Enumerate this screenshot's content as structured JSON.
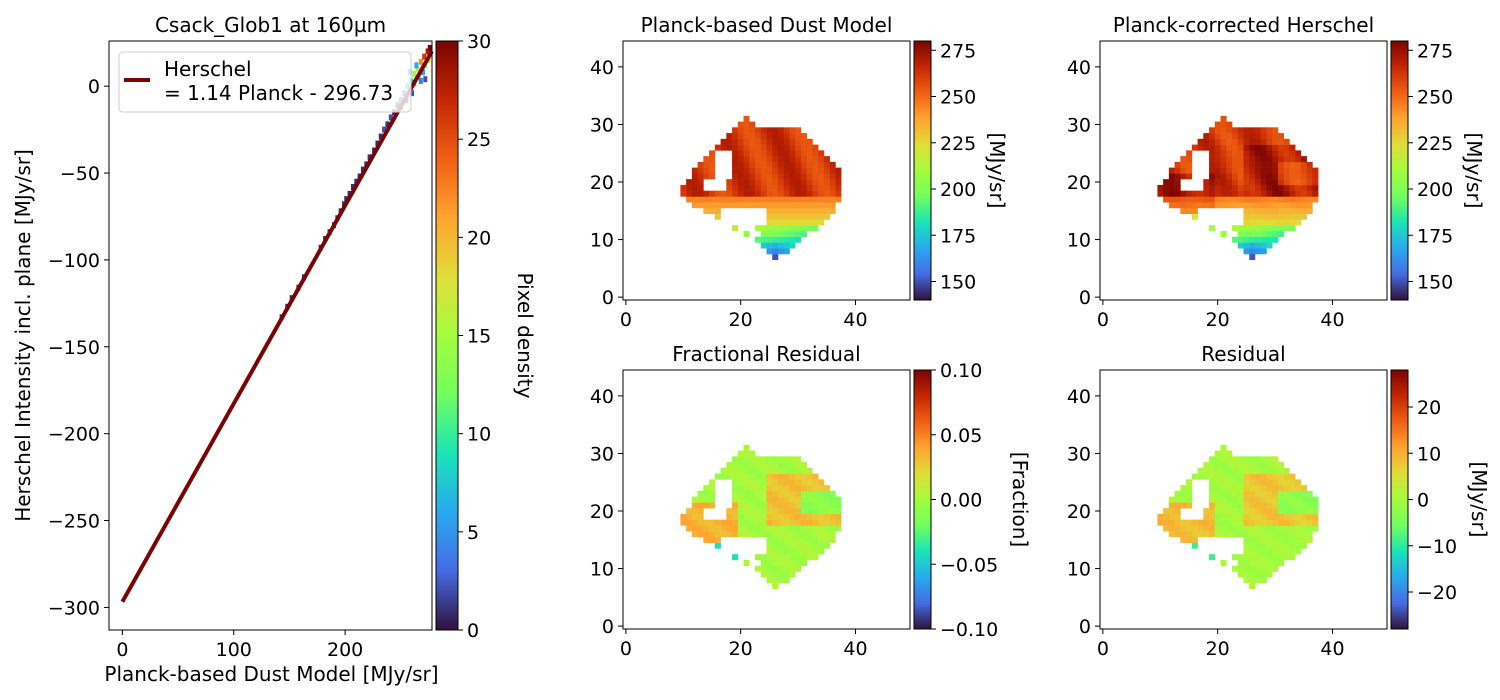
{
  "chart_data": [
    {
      "type": "scatter",
      "title": "Csack_Glob1 at 160µm",
      "xlabel": "Planck-based Dust Model [MJy/sr]",
      "ylabel": "Herschel Intensity incl. plane [MJy/sr]",
      "xlim": [
        -12,
        278
      ],
      "ylim": [
        -313,
        26
      ],
      "xticks": [
        0,
        100,
        200
      ],
      "yticks": [
        0,
        -50,
        -100,
        -150,
        -200,
        -250,
        -300
      ],
      "fit_line": {
        "slope": 1.14,
        "intercept": -296.73,
        "x_range": [
          0,
          278
        ],
        "color": "#7a0403"
      },
      "legend": {
        "position": "top-left",
        "entries": [
          "Herschel",
          "= 1.14 Planck - 296.73"
        ]
      },
      "density_points": [
        [
          143,
          -133,
          1
        ],
        [
          148,
          -127,
          1
        ],
        [
          152,
          -122,
          1
        ],
        [
          158,
          -116,
          1
        ],
        [
          163,
          -110,
          1
        ],
        [
          178,
          -93,
          1
        ],
        [
          182,
          -88,
          1
        ],
        [
          186,
          -84,
          1
        ],
        [
          190,
          -80,
          1
        ],
        [
          193,
          -76,
          1
        ],
        [
          196,
          -72,
          1
        ],
        [
          199,
          -68,
          1
        ],
        [
          201,
          -65,
          1
        ],
        [
          204,
          -62,
          1
        ],
        [
          207,
          -58,
          1
        ],
        [
          210,
          -55,
          1
        ],
        [
          213,
          -52,
          1
        ],
        [
          216,
          -48,
          1
        ],
        [
          219,
          -45,
          1
        ],
        [
          222,
          -41,
          1
        ],
        [
          226,
          -37,
          1
        ],
        [
          229,
          -33,
          1
        ],
        [
          232,
          -29,
          1
        ],
        [
          235,
          -25,
          2
        ],
        [
          238,
          -22,
          1
        ],
        [
          241,
          -18,
          2
        ],
        [
          244,
          -15,
          1
        ],
        [
          247,
          -11,
          2
        ],
        [
          250,
          -8,
          3
        ],
        [
          253,
          -4,
          4
        ],
        [
          256,
          0,
          6
        ],
        [
          259,
          3,
          10
        ],
        [
          262,
          7,
          14
        ],
        [
          265,
          10,
          18
        ],
        [
          268,
          14,
          22
        ],
        [
          271,
          17,
          26
        ],
        [
          274,
          20,
          28
        ],
        [
          262,
          2,
          4
        ],
        [
          266,
          5,
          8
        ],
        [
          270,
          8,
          6
        ],
        [
          272,
          12,
          12
        ],
        [
          275,
          15,
          16
        ],
        [
          276,
          22,
          30
        ],
        [
          264,
          12,
          6
        ],
        [
          258,
          8,
          3
        ],
        [
          268,
          3,
          4
        ],
        [
          272,
          4,
          2
        ],
        [
          260,
          -4,
          2
        ],
        [
          255,
          -8,
          1
        ],
        [
          250,
          -12,
          1
        ]
      ]
    },
    {
      "type": "heatmap",
      "title": "Planck-based Dust Model",
      "xticks": [
        0,
        20,
        40
      ],
      "yticks": [
        0,
        10,
        20,
        30,
        40
      ],
      "xlim": [
        -0.5,
        49.5
      ],
      "ylim": [
        -0.5,
        44.5
      ],
      "colorbar": {
        "label": "[MJy/sr]",
        "min": 140,
        "max": 280,
        "ticks": [
          150,
          175,
          200,
          225,
          250,
          275
        ]
      },
      "field": "model"
    },
    {
      "type": "heatmap",
      "title": "Planck-corrected Herschel",
      "xticks": [
        0,
        20,
        40
      ],
      "yticks": [
        0,
        10,
        20,
        30,
        40
      ],
      "xlim": [
        -0.5,
        49.5
      ],
      "ylim": [
        -0.5,
        44.5
      ],
      "colorbar": {
        "label": "[MJy/sr]",
        "min": 140,
        "max": 280,
        "ticks": [
          150,
          175,
          200,
          225,
          250,
          275
        ]
      },
      "field": "corrected"
    },
    {
      "type": "heatmap",
      "title": "Fractional Residual",
      "xticks": [
        0,
        20,
        40
      ],
      "yticks": [
        0,
        10,
        20,
        30,
        40
      ],
      "xlim": [
        -0.5,
        49.5
      ],
      "ylim": [
        -0.5,
        44.5
      ],
      "colorbar": {
        "label": "[Fraction]",
        "min": -0.1,
        "max": 0.1,
        "ticks": [
          0.1,
          0.05,
          0.0,
          -0.05,
          -0.1
        ],
        "ticklabels": [
          "0.10",
          "0.05",
          "0.00",
          "−0.05",
          "−0.10"
        ]
      },
      "field": "fraction"
    },
    {
      "type": "heatmap",
      "title": "Residual",
      "xticks": [
        0,
        20,
        40
      ],
      "yticks": [
        0,
        10,
        20,
        30,
        40
      ],
      "xlim": [
        -0.5,
        49.5
      ],
      "ylim": [
        -0.5,
        44.5
      ],
      "colorbar": {
        "label": "[MJy/sr]",
        "min": -28,
        "max": 28,
        "ticks": [
          20,
          10,
          0,
          -10,
          -20
        ]
      },
      "field": "residual"
    }
  ],
  "density_colorbar": {
    "label": "Pixel density",
    "min": 0,
    "max": 30,
    "ticks": [
      0,
      5,
      10,
      15,
      20,
      25,
      30
    ]
  },
  "region": {
    "rows": [
      [
        7,
        26,
        26
      ],
      [
        8,
        25,
        28
      ],
      [
        9,
        24,
        29
      ],
      [
        10,
        23,
        30
      ],
      [
        11,
        21,
        31
      ],
      [
        12,
        19,
        33
      ],
      [
        13,
        17,
        34
      ],
      [
        14,
        16,
        35
      ],
      [
        15,
        14,
        36
      ],
      [
        16,
        12,
        36
      ],
      [
        17,
        11,
        37
      ],
      [
        18,
        10,
        37
      ],
      [
        19,
        10,
        37
      ],
      [
        20,
        11,
        37
      ],
      [
        21,
        12,
        37
      ],
      [
        22,
        12,
        37
      ],
      [
        23,
        13,
        36
      ],
      [
        24,
        14,
        35
      ],
      [
        25,
        15,
        34
      ],
      [
        26,
        16,
        33
      ],
      [
        27,
        17,
        32
      ],
      [
        28,
        18,
        31
      ],
      [
        29,
        19,
        30
      ],
      [
        30,
        20,
        22
      ],
      [
        31,
        21,
        21
      ]
    ],
    "holes": [
      [
        21,
        16,
        25,
        18
      ],
      [
        28,
        22,
        22,
        25
      ],
      [
        19,
        14,
        20,
        17
      ],
      [
        13,
        17,
        15,
        24
      ],
      [
        12,
        20,
        12,
        22
      ],
      [
        11,
        22,
        11,
        23
      ]
    ]
  }
}
